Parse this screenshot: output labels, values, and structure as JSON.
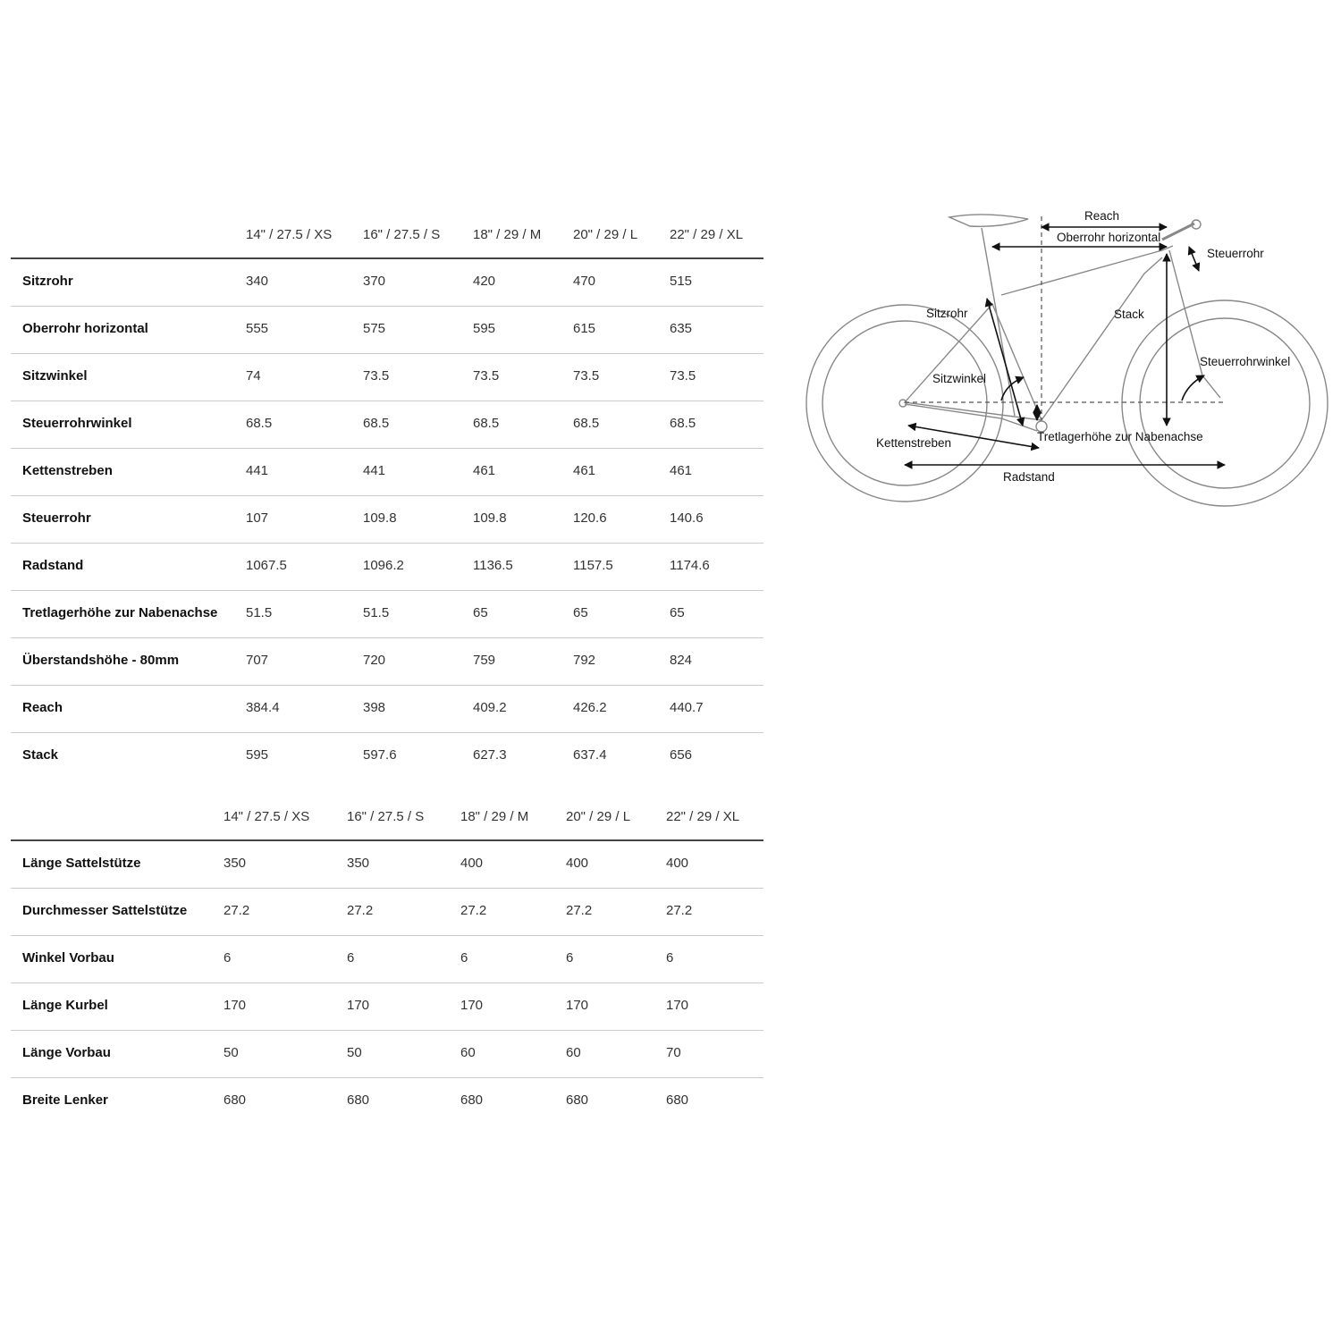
{
  "geometry_table": {
    "columns": [
      "14\" / 27.5 / XS",
      "16\" / 27.5 / S",
      "18\" / 29 / M",
      "20\" / 29 / L",
      "22\" / 29 / XL"
    ],
    "rows": [
      {
        "label": "Sitzrohr",
        "values": [
          "340",
          "370",
          "420",
          "470",
          "515"
        ]
      },
      {
        "label": "Oberrohr horizontal",
        "values": [
          "555",
          "575",
          "595",
          "615",
          "635"
        ]
      },
      {
        "label": "Sitzwinkel",
        "values": [
          "74",
          "73.5",
          "73.5",
          "73.5",
          "73.5"
        ]
      },
      {
        "label": "Steuerrohrwinkel",
        "values": [
          "68.5",
          "68.5",
          "68.5",
          "68.5",
          "68.5"
        ]
      },
      {
        "label": "Kettenstreben",
        "values": [
          "441",
          "441",
          "461",
          "461",
          "461"
        ]
      },
      {
        "label": "Steuerrohr",
        "values": [
          "107",
          "109.8",
          "109.8",
          "120.6",
          "140.6"
        ]
      },
      {
        "label": "Radstand",
        "values": [
          "1067.5",
          "1096.2",
          "1136.5",
          "1157.5",
          "1174.6"
        ]
      },
      {
        "label": "Tretlagerhöhe zur Nabenachse",
        "values": [
          "51.5",
          "51.5",
          "65",
          "65",
          "65"
        ]
      },
      {
        "label": "Überstandshöhe - 80mm",
        "values": [
          "707",
          "720",
          "759",
          "792",
          "824"
        ]
      },
      {
        "label": "Reach",
        "values": [
          "384.4",
          "398",
          "409.2",
          "426.2",
          "440.7"
        ]
      },
      {
        "label": "Stack",
        "values": [
          "595",
          "597.6",
          "627.3",
          "637.4",
          "656"
        ]
      }
    ]
  },
  "components_table": {
    "columns": [
      "14\" / 27.5 / XS",
      "16\" / 27.5 / S",
      "18\" / 29 / M",
      "20\" / 29 / L",
      "22\" / 29 / XL"
    ],
    "rows": [
      {
        "label": "Länge Sattelstütze",
        "values": [
          "350",
          "350",
          "400",
          "400",
          "400"
        ]
      },
      {
        "label": "Durchmesser Sattelstütze",
        "values": [
          "27.2",
          "27.2",
          "27.2",
          "27.2",
          "27.2"
        ]
      },
      {
        "label": "Winkel Vorbau",
        "values": [
          "6",
          "6",
          "6",
          "6",
          "6"
        ]
      },
      {
        "label": "Länge Kurbel",
        "values": [
          "170",
          "170",
          "170",
          "170",
          "170"
        ]
      },
      {
        "label": "Länge Vorbau",
        "values": [
          "50",
          "50",
          "60",
          "60",
          "70"
        ]
      },
      {
        "label": "Breite Lenker",
        "values": [
          "680",
          "680",
          "680",
          "680",
          "680"
        ]
      }
    ]
  },
  "diagram": {
    "labels": {
      "reach": "Reach",
      "top_tube": "Oberrohr horizontal",
      "head_tube": "Steuerrohr",
      "seat_tube": "Sitzrohr",
      "stack": "Stack",
      "head_angle": "Steuerrohrwinkel",
      "seat_angle": "Sitzwinkel",
      "chainstay": "Kettenstreben",
      "bb_drop": "Tretlagerhöhe zur Nabenachse",
      "wheelbase": "Radstand"
    }
  }
}
